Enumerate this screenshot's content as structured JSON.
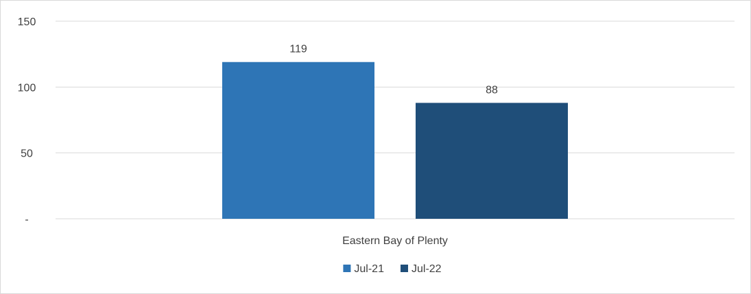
{
  "chart_data": {
    "type": "bar",
    "title": "",
    "xlabel": "",
    "ylabel": "",
    "categories": [
      "Eastern Bay of Plenty"
    ],
    "series": [
      {
        "name": "Jul-21",
        "values": [
          119
        ],
        "color": "#2e75b6"
      },
      {
        "name": "Jul-22",
        "values": [
          88
        ],
        "color": "#1f4e79"
      }
    ],
    "ylim": [
      0,
      150
    ],
    "yticks": [
      {
        "value": 0,
        "label": "-"
      },
      {
        "value": 50,
        "label": "50"
      },
      {
        "value": 100,
        "label": "100"
      },
      {
        "value": 150,
        "label": "150"
      }
    ],
    "data_labels": [
      "119",
      "88"
    ],
    "grid": true,
    "legend_position": "bottom",
    "gridline_color": "#d9d9d9",
    "text_color": "#404040"
  }
}
